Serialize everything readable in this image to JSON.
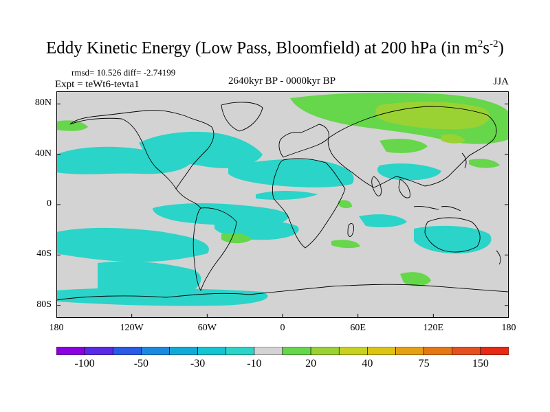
{
  "title": {
    "main": "Eddy Kinetic Energy (Low Pass, Bloomfield) at 200 hPa (in m",
    "exp1": "2",
    "mid": "s",
    "exp2": "-2",
    "close": ")"
  },
  "stats": "rmsd= 10.526 diff= -2.74199",
  "expt": "Expt = teWt6-tevta1",
  "period": "2640kyr BP - 0000kyr BP",
  "season": "JJA",
  "colors": {
    "ocean_bg": "#d3d3d3",
    "coast": "#000000",
    "cyan_band": "#2ad4c8",
    "green_band": "#66d64a",
    "yellowgreen_band": "#9ad233"
  },
  "map": {
    "lon_range": [
      -180,
      180
    ],
    "lat_range": [
      -90,
      90
    ],
    "y_ticks": [
      {
        "label": "80N",
        "lat": 80
      },
      {
        "label": "40N",
        "lat": 40
      },
      {
        "label": "0",
        "lat": 0
      },
      {
        "label": "40S",
        "lat": -40
      },
      {
        "label": "80S",
        "lat": -80
      }
    ],
    "x_ticks": [
      {
        "label": "180",
        "lon": -180
      },
      {
        "label": "120W",
        "lon": -120
      },
      {
        "label": "60W",
        "lon": -60
      },
      {
        "label": "0",
        "lon": 0
      },
      {
        "label": "60E",
        "lon": 60
      },
      {
        "label": "120E",
        "lon": 120
      },
      {
        "label": "180",
        "lon": 180
      }
    ]
  },
  "colorbar": {
    "colors": [
      "#8b00e0",
      "#5a2ae6",
      "#2a5ae6",
      "#1a8ae0",
      "#10aad8",
      "#14c4d2",
      "#2ad4c8",
      "#d3d3d3",
      "#66d64a",
      "#9ad233",
      "#c8d21e",
      "#dcc414",
      "#e6a014",
      "#e67814",
      "#e6501e",
      "#e62a14"
    ],
    "labels": [
      {
        "text": "-100",
        "boundary": 2
      },
      {
        "text": "-50",
        "boundary": 4
      },
      {
        "text": "-30",
        "boundary": 6
      },
      {
        "text": "-10",
        "boundary": 8
      },
      {
        "text": "20",
        "boundary": 10
      },
      {
        "text": "40",
        "boundary": 12
      },
      {
        "text": "75",
        "boundary": 14
      },
      {
        "text": "150",
        "boundary": 16
      }
    ]
  }
}
